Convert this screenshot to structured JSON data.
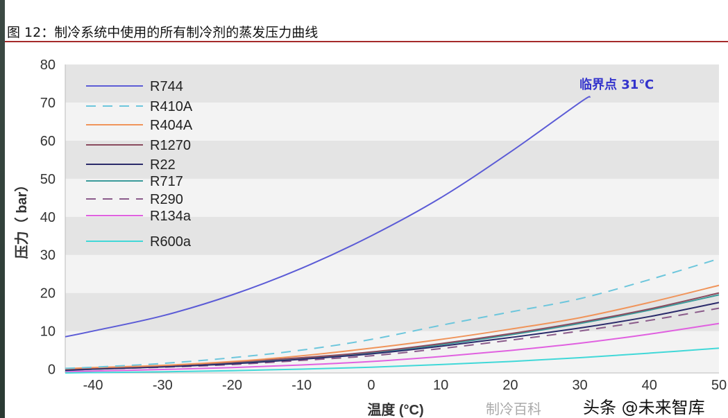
{
  "title": "图 12：制冷系统中使用的所有制冷剂的蒸发压力曲线",
  "watermark": "头条 @未来智库",
  "watermark2": "制冷百科",
  "chart_data": {
    "type": "line",
    "title": "",
    "xlabel": "温度 (°C)",
    "ylabel": "压力（ bar）",
    "xlim": [
      -44,
      50
    ],
    "ylim": [
      -1,
      80
    ],
    "xticks": [
      -40,
      -30,
      -20,
      -10,
      0,
      10,
      20,
      30,
      40,
      50
    ],
    "yticks": [
      0,
      10,
      20,
      30,
      40,
      50,
      60,
      70,
      80
    ],
    "grid": "alternating horizontal bands",
    "legend": "top-left",
    "annotation": {
      "text": "临界点 31℃",
      "x": 31,
      "y": 71,
      "color": "#3333cc"
    },
    "series": [
      {
        "name": "R744",
        "color": "#5b5bd6",
        "dash": false,
        "x": [
          -44,
          -40,
          -30,
          -20,
          -10,
          0,
          10,
          20,
          30,
          31.5
        ],
        "y": [
          8.5,
          10,
          14,
          19.5,
          26.5,
          35,
          45,
          57,
          70,
          71.5
        ]
      },
      {
        "name": "R410A",
        "color": "#6cc6dc",
        "dash": true,
        "x": [
          -44,
          -40,
          -30,
          -20,
          -10,
          0,
          10,
          20,
          30,
          40,
          50
        ],
        "y": [
          0.2,
          0.5,
          1.5,
          3,
          5,
          7.8,
          11.5,
          15,
          18.5,
          23.5,
          29
        ]
      },
      {
        "name": "R404A",
        "color": "#f0945a",
        "dash": false,
        "x": [
          -44,
          -40,
          -30,
          -20,
          -10,
          0,
          10,
          20,
          30,
          40,
          50
        ],
        "y": [
          0.1,
          0.4,
          1,
          2,
          3.5,
          5.5,
          7.8,
          10.5,
          13.5,
          17.5,
          22
        ]
      },
      {
        "name": "R1270",
        "color": "#8a4a5e",
        "dash": false,
        "x": [
          -44,
          -40,
          -30,
          -20,
          -10,
          0,
          10,
          20,
          30,
          40,
          50
        ],
        "y": [
          0,
          0.3,
          0.9,
          1.8,
          3,
          4.5,
          6.7,
          9.3,
          12.3,
          15.8,
          20
        ]
      },
      {
        "name": "R22",
        "color": "#2a2a6a",
        "dash": false,
        "x": [
          -44,
          -40,
          -30,
          -20,
          -10,
          0,
          10,
          20,
          30,
          40,
          50
        ],
        "y": [
          -0.3,
          0,
          0.6,
          1.4,
          2.6,
          4,
          6,
          8.3,
          10.8,
          13.8,
          17.5
        ]
      },
      {
        "name": "R717",
        "color": "#3a9a9a",
        "dash": false,
        "x": [
          -44,
          -40,
          -30,
          -20,
          -10,
          0,
          10,
          20,
          30,
          40,
          50
        ],
        "y": [
          -0.4,
          0,
          0.6,
          1.5,
          2.8,
          4.3,
          6.4,
          9,
          12,
          15.5,
          19.5
        ]
      },
      {
        "name": "R290",
        "color": "#8a5a8a",
        "dash": true,
        "x": [
          -44,
          -40,
          -30,
          -20,
          -10,
          0,
          10,
          20,
          30,
          40,
          50
        ],
        "y": [
          -0.3,
          0,
          0.5,
          1.2,
          2.3,
          3.5,
          5.4,
          7.6,
          10,
          12.8,
          16
        ]
      },
      {
        "name": "R134a",
        "color": "#e060e0",
        "dash": false,
        "x": [
          -44,
          -40,
          -30,
          -20,
          -10,
          0,
          10,
          20,
          30,
          40,
          50
        ],
        "y": [
          -0.6,
          -0.5,
          -0.1,
          0.4,
          1.1,
          2,
          3.3,
          4.9,
          6.8,
          9.2,
          12
        ]
      },
      {
        "name": "R600a",
        "color": "#40d8d8",
        "dash": false,
        "x": [
          -44,
          -40,
          -30,
          -20,
          -10,
          0,
          10,
          20,
          30,
          40,
          50
        ],
        "y": [
          -1,
          -0.9,
          -0.7,
          -0.4,
          0,
          0.5,
          1.2,
          2,
          3,
          4.2,
          5.5
        ]
      }
    ]
  }
}
